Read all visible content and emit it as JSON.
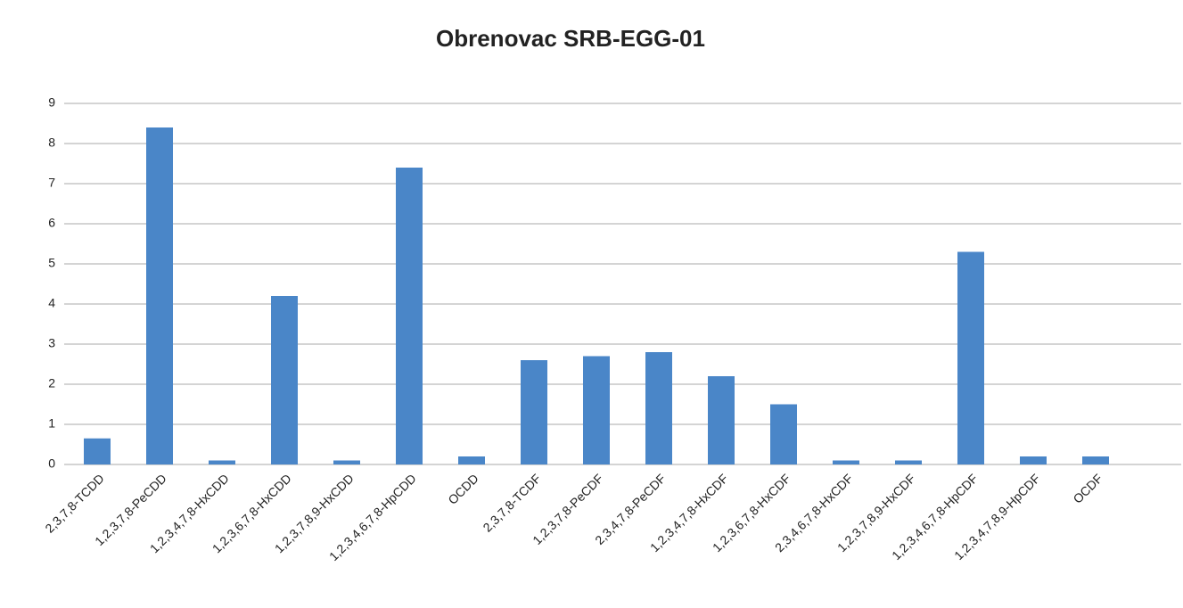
{
  "chart_data": {
    "type": "bar",
    "title": "Obrenovac SRB-EGG-01",
    "categories": [
      "2,3,7,8-TCDD",
      "1,2,3,7,8-PeCDD",
      "1,2,3,4,7,8-HxCDD",
      "1,2,3,6,7,8-HxCDD",
      "1,2,3,7,8,9-HxCDD",
      "1,2,3,4,6,7,8-HpCDD",
      "OCDD",
      "2,3,7,8-TCDF",
      "1,2,3,7,8-PeCDF",
      "2,3,4,7,8-PeCDF",
      "1,2,3,4,7,8-HxCDF",
      "1,2,3,6,7,8-HxCDF",
      "2,3,4,6,7,8-HxCDF",
      "1,2,3,7,8,9-HxCDF",
      "1,2,3,4,6,7,8-HpCDF",
      "1,2,3,4,7,8,9-HpCDF",
      "OCDF"
    ],
    "values": [
      0.65,
      8.4,
      0.1,
      4.2,
      0.1,
      7.4,
      0.2,
      2.6,
      2.7,
      2.8,
      2.2,
      1.5,
      0.1,
      0.1,
      5.3,
      0.2,
      0.2
    ],
    "color": "#4a86c8",
    "ylim": [
      0,
      9
    ],
    "yticks": [
      0,
      1,
      2,
      3,
      4,
      5,
      6,
      7,
      8,
      9
    ],
    "grid": true
  }
}
